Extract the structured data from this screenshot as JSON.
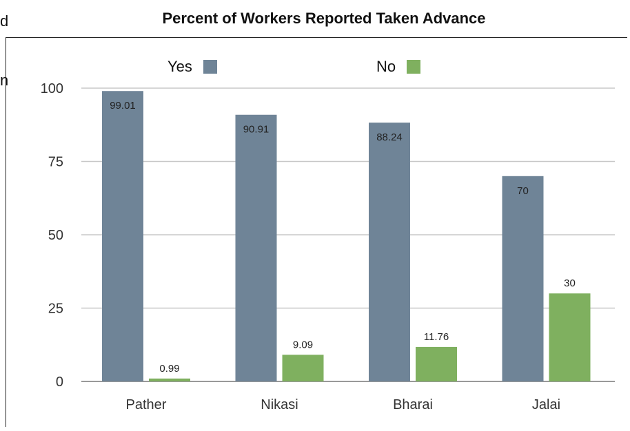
{
  "edge_text": [
    "d",
    "n"
  ],
  "chart_data": {
    "type": "bar",
    "title": "Percent of Workers Reported Taken Advance",
    "xlabel": "",
    "ylabel": "",
    "categories": [
      "Pather",
      "Nikasi",
      "Bharai",
      "Jalai"
    ],
    "series": [
      {
        "name": "Yes",
        "values": [
          99.01,
          90.91,
          88.24,
          70
        ],
        "labels": [
          "99.01",
          "90.91",
          "88.24",
          "70"
        ],
        "color": "#6f8497"
      },
      {
        "name": "No",
        "values": [
          0.99,
          9.09,
          11.76,
          30
        ],
        "labels": [
          "0.99",
          "9.09",
          "11.76",
          "30"
        ],
        "color": "#7fb05f"
      }
    ],
    "yticks": [
      "0",
      "25",
      "50",
      "75",
      "100"
    ],
    "ylim": [
      0,
      100
    ],
    "grid": true,
    "legend": "top"
  }
}
